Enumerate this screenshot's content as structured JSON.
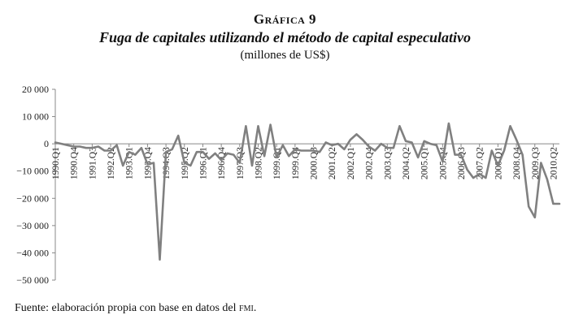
{
  "header": {
    "label": "Gráfica 9",
    "title": "Fuga de capitales utilizando el método de capital especulativo",
    "subtitle": "(millones de US$)"
  },
  "footer": {
    "source_prefix": "Fuente: elaboración propia con base en datos del ",
    "source_org": "fmi",
    "source_suffix": "."
  },
  "chart_data": {
    "type": "line",
    "title": "Fuga de capitales utilizando el método de capital especulativo",
    "subtitle": "(millones de US$)",
    "xlabel": "",
    "ylabel": "",
    "ylim": [
      -50000,
      20000
    ],
    "yticks": [
      20000,
      10000,
      0,
      -10000,
      -20000,
      -30000,
      -40000,
      -50000
    ],
    "ytick_labels": [
      "20 000",
      "10 000",
      "0",
      "−10 000",
      "−20 000",
      "−30 000",
      "−40 000",
      "−50 000"
    ],
    "grid": false,
    "line_color": "#808080",
    "x": [
      "1990.Q1",
      "1990.Q2",
      "1990.Q3",
      "1990.Q4",
      "1991.Q1",
      "1991.Q2",
      "1991.Q3",
      "1991.Q4",
      "1992.Q1",
      "1992.Q2",
      "1992.Q3",
      "1992.Q4",
      "1993.Q1",
      "1993.Q2",
      "1993.Q3",
      "1993.Q4",
      "1994.Q1",
      "1994.Q2",
      "1994.Q3",
      "1994.Q4",
      "1995.Q1",
      "1995.Q2",
      "1995.Q3",
      "1995.Q4",
      "1996.Q1",
      "1996.Q2",
      "1996.Q3",
      "1996.Q4",
      "1997.Q1",
      "1997.Q2",
      "1997.Q3",
      "1997.Q4",
      "1998.Q1",
      "1998.Q2",
      "1998.Q3",
      "1998.Q4",
      "1999.Q1",
      "1999.Q2",
      "1999.Q3",
      "1999.Q4",
      "2000.Q1",
      "2000.Q2",
      "2000.Q3",
      "2000.Q4",
      "2001.Q1",
      "2001.Q2",
      "2001.Q3",
      "2001.Q4",
      "2002.Q1",
      "2002.Q2",
      "2002.Q3",
      "2002.Q4",
      "2003.Q1",
      "2003.Q2",
      "2003.Q3",
      "2003.Q4",
      "2004.Q1",
      "2004.Q2",
      "2004.Q3",
      "2004.Q4",
      "2005.Q1",
      "2005.Q2",
      "2005.Q3",
      "2005.Q4",
      "2006.Q1",
      "2006.Q2",
      "2006.Q3",
      "2006.Q4",
      "2007.Q1",
      "2007.Q2",
      "2007.Q3",
      "2007.Q4",
      "2008.Q1",
      "2008.Q2",
      "2008.Q3",
      "2008.Q4",
      "2009.Q1",
      "2009.Q2",
      "2009.Q3",
      "2009.Q4",
      "2010.Q1",
      "2010.Q2",
      "2010.Q3"
    ],
    "tick_labels": [
      "1990.Q1",
      "1990.Q4",
      "1991.Q3",
      "1992.Q2",
      "1993.Q1",
      "1993.Q4",
      "1994.Q3",
      "1995.Q2",
      "1996.Q1",
      "1996.Q4",
      "1997.Q3",
      "1998.Q2",
      "1999.Q1",
      "1999.Q4",
      "2000.Q3",
      "2001.Q2",
      "2002.Q1",
      "2002.Q4",
      "2003.Q3",
      "2004.Q2",
      "2005.Q1",
      "2005.Q4",
      "2006.Q3",
      "2007.Q2",
      "2008.Q1",
      "2008.Q4",
      "2009.Q3",
      "2010.Q2"
    ],
    "series": [
      {
        "values": [
          500,
          0,
          -500,
          -1000,
          -1000,
          -1500,
          -1500,
          -1000,
          -2500,
          -2500,
          -500,
          -8000,
          -3000,
          -4000,
          -1500,
          -7500,
          -7000,
          -42500,
          -3000,
          -2000,
          3000,
          -7000,
          -8000,
          -3000,
          -3000,
          -5500,
          -3500,
          -6000,
          -3500,
          -4000,
          -7000,
          6500,
          -8000,
          6500,
          -4500,
          7000,
          -5000,
          -500,
          -4500,
          -2000,
          -2500,
          -2500,
          -2500,
          -3000,
          500,
          -500,
          0,
          -2000,
          1500,
          3500,
          1500,
          -1000,
          -2500,
          0,
          -1500,
          -1500,
          6500,
          1000,
          500,
          -5000,
          1000,
          0,
          -500,
          -6500,
          7500,
          -4000,
          -4000,
          -9500,
          -12500,
          -11000,
          -12500,
          -2500,
          -8000,
          -2500,
          6500,
          1500,
          -4000,
          -23000,
          -27000,
          -7000,
          -13000,
          -22000,
          -22000
        ]
      }
    ]
  }
}
